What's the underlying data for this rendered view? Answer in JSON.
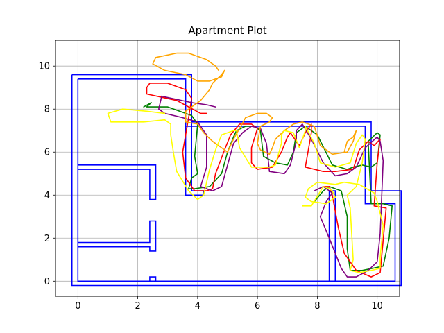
{
  "chart_data": {
    "type": "line",
    "title": "Apartment Plot",
    "xlabel": "",
    "ylabel": "",
    "xlim": [
      -0.75,
      10.75
    ],
    "ylim": [
      -0.7,
      11.2
    ],
    "xticks": [
      0,
      2,
      4,
      6,
      8,
      10
    ],
    "yticks": [
      0,
      2,
      4,
      6,
      8,
      10
    ],
    "grid": true,
    "legend": "none",
    "colors": {
      "walls": "#0000ff",
      "green": "#008000",
      "red": "#ff0000",
      "purple": "#800080",
      "orange": "#ffa500",
      "yellow": "#ffff00"
    },
    "walls": [
      {
        "x": [
          -0.2,
          -0.2,
          10.8,
          10.8,
          9.8,
          9.8,
          3.8,
          3.8,
          -0.2
        ],
        "y": [
          9.6,
          -0.2,
          -0.2,
          4.2,
          4.2,
          7.4,
          7.4,
          9.6,
          9.6
        ]
      },
      {
        "x": [
          0.0,
          0.0,
          10.6,
          10.6,
          9.6,
          9.6,
          3.6,
          3.6,
          0.0
        ],
        "y": [
          9.4,
          0.0,
          0.0,
          3.6,
          3.6,
          7.2,
          7.2,
          9.4,
          9.4
        ]
      },
      {
        "x": [
          0.0,
          2.6,
          2.6,
          2.4,
          2.4,
          0.0
        ],
        "y": [
          5.4,
          5.4,
          3.8,
          3.8,
          5.2,
          5.2
        ]
      },
      {
        "x": [
          0.0,
          2.4,
          2.4,
          2.6,
          2.6,
          2.4,
          2.4,
          0.0
        ],
        "y": [
          1.8,
          1.8,
          2.8,
          2.8,
          1.4,
          1.4,
          1.6,
          1.6
        ]
      },
      {
        "x": [
          2.4,
          2.4,
          2.6,
          2.6
        ],
        "y": [
          0.0,
          0.2,
          0.2,
          0.0
        ]
      },
      {
        "x": [
          3.6,
          3.6,
          4.2,
          4.2,
          3.8,
          3.8
        ],
        "y": [
          7.4,
          4.0,
          4.0,
          4.2,
          4.2,
          7.4
        ]
      },
      {
        "x": [
          8.4,
          8.4,
          8.6,
          8.6
        ],
        "y": [
          0.0,
          4.2,
          4.2,
          0.0
        ]
      }
    ],
    "series": [
      {
        "color": "green",
        "x": [
          2.2,
          2.45,
          2.3,
          3.0,
          3.8,
          4.0,
          3.9,
          4.0,
          3.8,
          3.7,
          3.9,
          4.4,
          4.8,
          5.0,
          5.2,
          5.3,
          5.6,
          5.9,
          6.1,
          6.2,
          6.6,
          7.0,
          7.2,
          7.3,
          7.6,
          8.0,
          8.5,
          9.0,
          9.2,
          9.5,
          9.8,
          10.0,
          10.1,
          10.0,
          9.7,
          9.8,
          10.2,
          10.5,
          10.4,
          10.2,
          9.5,
          9.1,
          9.0,
          9.0,
          8.8,
          8.4,
          8.2,
          7.9
        ],
        "y": [
          8.1,
          8.3,
          8.1,
          8.1,
          7.7,
          7.3,
          5.8,
          5.0,
          4.8,
          4.3,
          4.3,
          4.4,
          5.0,
          6.0,
          6.7,
          7.0,
          7.2,
          7.2,
          7.0,
          5.8,
          5.5,
          5.4,
          6.0,
          6.9,
          7.2,
          6.8,
          5.4,
          5.2,
          5.3,
          5.4,
          5.3,
          5.5,
          6.8,
          6.9,
          6.5,
          3.6,
          3.6,
          3.5,
          2.0,
          0.7,
          0.5,
          0.5,
          1.5,
          3.0,
          4.2,
          4.4,
          4.2,
          3.7
        ]
      },
      {
        "color": "red",
        "x": [
          4.3,
          4.1,
          3.3,
          2.3,
          2.3,
          2.4,
          3.0,
          3.6,
          3.8,
          3.7,
          3.5,
          3.6,
          3.9,
          4.3,
          4.5,
          4.6,
          4.9,
          5.1,
          5.4,
          5.8,
          6.0,
          5.8,
          5.8,
          6.0,
          6.5,
          6.8,
          7.0,
          7.1,
          7.4,
          7.6,
          7.8,
          7.8,
          7.6,
          8.2,
          8.6,
          9.2,
          9.4,
          9.7,
          9.9,
          10.1,
          10.0,
          9.9,
          10.3,
          10.1,
          9.8,
          9.3,
          8.9,
          8.7,
          8.5,
          8.4,
          8.2
        ],
        "y": [
          7.8,
          7.8,
          8.4,
          8.7,
          9.0,
          9.2,
          9.2,
          8.9,
          8.5,
          7.6,
          6.0,
          4.8,
          4.2,
          4.2,
          4.3,
          5.0,
          6.1,
          6.8,
          7.3,
          7.3,
          7.1,
          6.2,
          5.5,
          5.2,
          5.3,
          6.0,
          6.7,
          6.9,
          6.3,
          6.9,
          7.3,
          6.9,
          5.3,
          5.1,
          5.1,
          5.2,
          6.1,
          6.5,
          6.3,
          6.6,
          5.5,
          3.5,
          3.4,
          0.4,
          0.2,
          0.5,
          1.3,
          2.5,
          4.0,
          4.4,
          4.4
        ]
      },
      {
        "color": "purple",
        "x": [
          4.6,
          4.3,
          3.8,
          2.8,
          2.7,
          2.9,
          3.5,
          4.0,
          4.3,
          4.3,
          4.1,
          4.5,
          4.8,
          5.0,
          5.2,
          5.5,
          5.8,
          6.1,
          6.3,
          6.4,
          6.9,
          7.1,
          7.3,
          7.3,
          7.5,
          7.8,
          8.2,
          8.6,
          9.0,
          9.3,
          9.6,
          10.0,
          10.1,
          10.2,
          10.1,
          10.0,
          9.7,
          9.3,
          9.0,
          8.8,
          8.4,
          8.1,
          8.3,
          8.5,
          8.2,
          7.9
        ],
        "y": [
          8.1,
          8.2,
          8.3,
          8.6,
          8.0,
          7.8,
          7.6,
          7.4,
          6.8,
          5.3,
          4.4,
          4.2,
          4.4,
          5.4,
          6.4,
          6.9,
          7.2,
          7.1,
          6.4,
          5.1,
          5.0,
          5.4,
          6.5,
          7.0,
          7.3,
          6.6,
          5.5,
          4.9,
          5.0,
          5.3,
          6.2,
          6.7,
          6.5,
          5.6,
          2.2,
          0.9,
          0.5,
          0.2,
          0.2,
          0.6,
          2.0,
          3.0,
          3.7,
          4.1,
          4.4,
          4.2
        ]
      },
      {
        "color": "orange",
        "x": [
          4.7,
          4.6,
          4.3,
          3.7,
          3.3,
          2.6,
          2.5,
          2.9,
          3.6,
          4.0,
          4.4,
          4.6,
          4.8,
          4.9,
          4.8,
          4.5,
          4.4,
          4.1,
          3.6,
          3.6,
          4.0,
          4.2,
          4.5,
          4.8,
          5.0,
          5.2,
          5.4,
          5.6,
          6.0,
          6.3,
          6.5,
          6.4,
          6.1,
          6.0,
          6.1,
          6.4,
          6.5,
          6.6,
          6.9,
          7.2,
          7.5,
          7.9,
          8.1,
          8.5,
          9.0,
          9.2,
          9.3,
          9.2,
          9.0,
          8.9
        ],
        "y": [
          9.8,
          10.0,
          10.3,
          10.6,
          10.6,
          10.4,
          10.1,
          9.8,
          9.6,
          9.3,
          9.3,
          9.4,
          9.5,
          9.8,
          9.6,
          9.2,
          8.9,
          8.4,
          7.9,
          7.4,
          7.3,
          6.9,
          6.5,
          6.2,
          6.0,
          6.6,
          7.1,
          7.6,
          7.8,
          7.8,
          7.6,
          7.4,
          7.2,
          6.4,
          6.1,
          5.9,
          6.2,
          6.6,
          7.0,
          7.3,
          7.4,
          7.2,
          6.3,
          5.9,
          6.0,
          6.5,
          7.0,
          6.7,
          6.5,
          6.0
        ]
      },
      {
        "color": "yellow",
        "x": [
          2.9,
          2.3,
          1.5,
          1.0,
          1.1,
          1.5,
          2.2,
          2.9,
          3.1,
          3.1,
          3.2,
          3.3,
          3.7,
          4.0,
          4.2,
          4.4,
          4.6,
          4.8,
          5.2,
          5.3,
          5.4,
          5.8,
          6.2,
          6.4,
          6.6,
          6.8,
          6.8,
          6.9,
          7.2,
          7.4,
          7.5,
          7.6,
          7.6,
          7.9,
          8.1,
          8.6,
          9.1,
          9.3,
          9.5,
          9.6,
          9.5,
          9.3,
          9.0,
          9.1,
          9.2,
          9.1,
          9.4,
          9.8,
          10.1,
          10.1,
          10.2,
          10.0,
          9.9,
          9.4,
          8.9,
          8.6,
          8.0,
          7.7,
          7.6,
          7.8,
          8.3,
          8.6,
          8.5,
          8.4,
          8.2,
          7.8,
          7.5
        ],
        "y": [
          7.8,
          7.9,
          8.0,
          7.8,
          7.4,
          7.4,
          7.4,
          7.5,
          7.3,
          6.8,
          5.9,
          5.1,
          4.2,
          3.8,
          4.0,
          5.2,
          6.1,
          6.8,
          7.0,
          7.0,
          6.2,
          5.3,
          5.3,
          5.3,
          5.4,
          6.4,
          6.8,
          7.0,
          6.9,
          6.2,
          6.6,
          7.0,
          7.2,
          6.4,
          5.5,
          5.3,
          5.5,
          6.4,
          6.8,
          6.6,
          5.5,
          4.4,
          4.0,
          3.4,
          1.0,
          0.5,
          0.4,
          0.5,
          0.6,
          1.1,
          2.6,
          3.7,
          4.1,
          4.5,
          4.6,
          4.5,
          4.6,
          4.3,
          3.9,
          3.7,
          3.6,
          3.9,
          4.2,
          4.3,
          4.4,
          3.5,
          3.5
        ]
      }
    ]
  }
}
